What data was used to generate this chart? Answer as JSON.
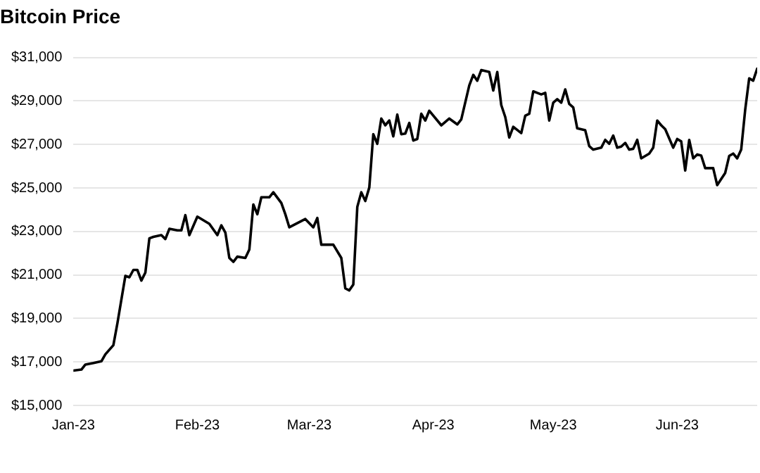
{
  "chart_data": {
    "type": "line",
    "title": "Bitcoin Price",
    "x": [
      "2023-01-01",
      "2023-01-03",
      "2023-01-04",
      "2023-01-06",
      "2023-01-08",
      "2023-01-09",
      "2023-01-11",
      "2023-01-12",
      "2023-01-14",
      "2023-01-15",
      "2023-01-16",
      "2023-01-17",
      "2023-01-18",
      "2023-01-19",
      "2023-01-20",
      "2023-01-21",
      "2023-01-23",
      "2023-01-24",
      "2023-01-25",
      "2023-01-27",
      "2023-01-28",
      "2023-01-29",
      "2023-01-30",
      "2023-02-01",
      "2023-02-04",
      "2023-02-06",
      "2023-02-07",
      "2023-02-08",
      "2023-02-09",
      "2023-02-10",
      "2023-02-11",
      "2023-02-13",
      "2023-02-14",
      "2023-02-15",
      "2023-02-16",
      "2023-02-17",
      "2023-02-19",
      "2023-02-20",
      "2023-02-22",
      "2023-02-23",
      "2023-02-24",
      "2023-02-28",
      "2023-03-02",
      "2023-03-03",
      "2023-03-04",
      "2023-03-07",
      "2023-03-09",
      "2023-03-10",
      "2023-03-11",
      "2023-03-12",
      "2023-03-13",
      "2023-03-14",
      "2023-03-15",
      "2023-03-16",
      "2023-03-17",
      "2023-03-18",
      "2023-03-19",
      "2023-03-20",
      "2023-03-21",
      "2023-03-22",
      "2023-03-23",
      "2023-03-24",
      "2023-03-25",
      "2023-03-26",
      "2023-03-27",
      "2023-03-28",
      "2023-03-29",
      "2023-03-30",
      "2023-03-31",
      "2023-04-03",
      "2023-04-05",
      "2023-04-07",
      "2023-04-08",
      "2023-04-10",
      "2023-04-11",
      "2023-04-12",
      "2023-04-13",
      "2023-04-15",
      "2023-04-16",
      "2023-04-17",
      "2023-04-18",
      "2023-04-19",
      "2023-04-20",
      "2023-04-21",
      "2023-04-23",
      "2023-04-24",
      "2023-04-25",
      "2023-04-26",
      "2023-04-28",
      "2023-04-29",
      "2023-04-30",
      "2023-05-01",
      "2023-05-02",
      "2023-05-03",
      "2023-05-04",
      "2023-05-05",
      "2023-05-06",
      "2023-05-07",
      "2023-05-09",
      "2023-05-10",
      "2023-05-11",
      "2023-05-13",
      "2023-05-14",
      "2023-05-15",
      "2023-05-16",
      "2023-05-17",
      "2023-05-18",
      "2023-05-19",
      "2023-05-20",
      "2023-05-21",
      "2023-05-22",
      "2023-05-23",
      "2023-05-25",
      "2023-05-26",
      "2023-05-27",
      "2023-05-28",
      "2023-05-29",
      "2023-05-31",
      "2023-06-01",
      "2023-06-02",
      "2023-06-03",
      "2023-06-04",
      "2023-06-05",
      "2023-06-06",
      "2023-06-07",
      "2023-06-08",
      "2023-06-10",
      "2023-06-11",
      "2023-06-13",
      "2023-06-14",
      "2023-06-15",
      "2023-06-16",
      "2023-06-17",
      "2023-06-18",
      "2023-06-19",
      "2023-06-20",
      "2023-06-21"
    ],
    "series": [
      {
        "color": "#000000",
        "values": [
          16600,
          16650,
          16880,
          16950,
          17030,
          17350,
          17770,
          18770,
          20960,
          20890,
          21230,
          21230,
          20740,
          21110,
          22680,
          22750,
          22830,
          22650,
          23120,
          23050,
          23050,
          23750,
          22830,
          23680,
          23350,
          22830,
          23280,
          22950,
          21780,
          21600,
          21840,
          21780,
          22170,
          24240,
          23790,
          24570,
          24570,
          24800,
          24310,
          23790,
          23190,
          23570,
          23190,
          23620,
          22390,
          22390,
          21780,
          20380,
          20290,
          20560,
          24130,
          24800,
          24400,
          25020,
          27470,
          27030,
          28190,
          27880,
          28100,
          27370,
          28370,
          27470,
          27500,
          27990,
          27180,
          27250,
          28410,
          28100,
          28550,
          27880,
          28190,
          27920,
          28150,
          29710,
          30200,
          29930,
          30420,
          30330,
          29480,
          30330,
          28810,
          28260,
          27320,
          27810,
          27520,
          28320,
          28410,
          29440,
          29300,
          29370,
          28100,
          28920,
          29080,
          28920,
          29530,
          28860,
          28700,
          27740,
          27650,
          26920,
          26760,
          26850,
          27210,
          27030,
          27410,
          26850,
          26900,
          27070,
          26760,
          26800,
          27210,
          26360,
          26580,
          26850,
          28100,
          27880,
          27700,
          26850,
          27250,
          27140,
          25800,
          27210,
          26360,
          26540,
          26490,
          25910,
          25910,
          25130,
          25690,
          26470,
          26580,
          26360,
          26760,
          28590,
          30040,
          29930,
          30480
        ]
      }
    ],
    "xlim": [
      "2023-01-01",
      "2023-06-21"
    ],
    "xticks": [
      {
        "value": "2023-01-01",
        "label": "Jan-23"
      },
      {
        "value": "2023-02-01",
        "label": "Feb-23"
      },
      {
        "value": "2023-03-01",
        "label": "Mar-23"
      },
      {
        "value": "2023-04-01",
        "label": "Apr-23"
      },
      {
        "value": "2023-05-01",
        "label": "May-23"
      },
      {
        "value": "2023-06-01",
        "label": "Jun-23"
      }
    ],
    "ylim": [
      15000,
      31000
    ],
    "yticks": [
      {
        "value": 15000,
        "label": "$15,000"
      },
      {
        "value": 17000,
        "label": "$17,000"
      },
      {
        "value": 19000,
        "label": "$19,000"
      },
      {
        "value": 21000,
        "label": "$21,000"
      },
      {
        "value": 23000,
        "label": "$23,000"
      },
      {
        "value": 25000,
        "label": "$25,000"
      },
      {
        "value": 27000,
        "label": "$27,000"
      },
      {
        "value": 29000,
        "label": "$29,000"
      },
      {
        "value": 31000,
        "label": "$31,000"
      }
    ],
    "grid": "y",
    "marker": "none",
    "line_style": "solid",
    "legend": false
  }
}
